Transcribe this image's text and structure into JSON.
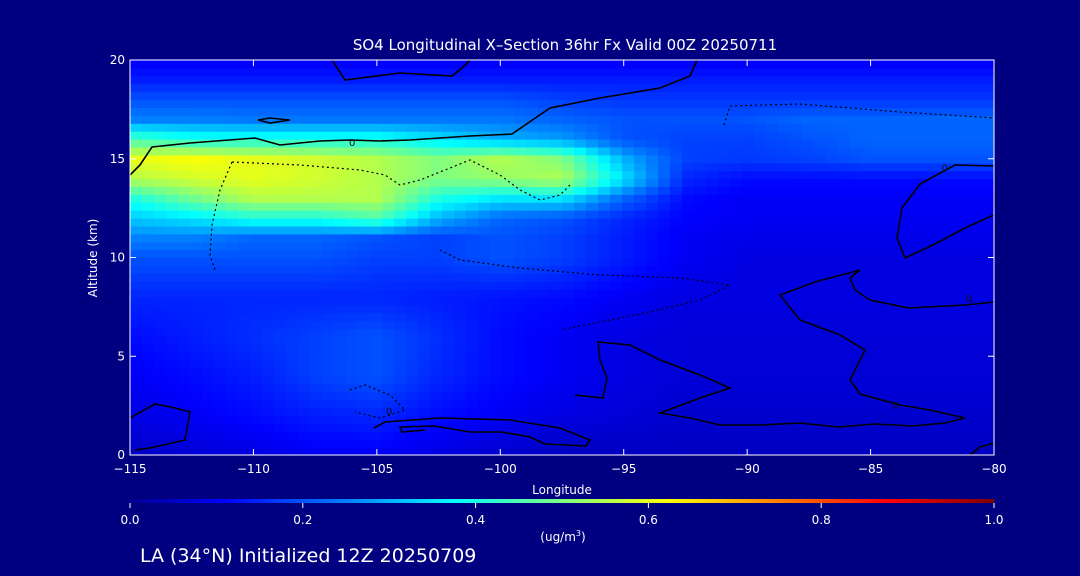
{
  "chart_data": {
    "type": "heatmap",
    "title": "SO4 Longitudinal X–Section 36hr  Fx Valid 00Z 20250711",
    "xlabel": "Longitude",
    "ylabel": "Altitude (km)",
    "xlim": [
      -115,
      -80
    ],
    "ylim": [
      0,
      20
    ],
    "x_ticks": [
      -115,
      -110,
      -105,
      -100,
      -95,
      -90,
      -85,
      -80
    ],
    "x_tick_labels": [
      "−115",
      "−110",
      "−105",
      "−100",
      "−95",
      "−90",
      "−85",
      "−80"
    ],
    "y_ticks": [
      0,
      5,
      10,
      15,
      20
    ],
    "y_tick_labels": [
      "0",
      "5",
      "10",
      "15",
      "20"
    ],
    "x": [
      -115,
      -112.5,
      -110,
      -107.5,
      -105,
      -102.5,
      -100,
      -97.5,
      -95,
      -92.5,
      -90,
      -87.5,
      -85,
      -82.5,
      -80
    ],
    "y": [
      0,
      2,
      4,
      6,
      8,
      10,
      11,
      12,
      13,
      14,
      15,
      16,
      17,
      18,
      19,
      20
    ],
    "z": [
      [
        0.05,
        0.07,
        0.08,
        0.1,
        0.1,
        0.08,
        0.06,
        0.05,
        0.05,
        0.05,
        0.05,
        0.05,
        0.05,
        0.05,
        0.05
      ],
      [
        0.08,
        0.1,
        0.12,
        0.14,
        0.15,
        0.12,
        0.1,
        0.08,
        0.07,
        0.06,
        0.06,
        0.06,
        0.06,
        0.06,
        0.06
      ],
      [
        0.1,
        0.12,
        0.14,
        0.18,
        0.2,
        0.15,
        0.12,
        0.1,
        0.08,
        0.07,
        0.07,
        0.07,
        0.07,
        0.07,
        0.07
      ],
      [
        0.12,
        0.14,
        0.16,
        0.18,
        0.2,
        0.16,
        0.12,
        0.1,
        0.08,
        0.07,
        0.07,
        0.07,
        0.07,
        0.07,
        0.07
      ],
      [
        0.15,
        0.15,
        0.15,
        0.15,
        0.15,
        0.14,
        0.13,
        0.12,
        0.1,
        0.08,
        0.08,
        0.08,
        0.08,
        0.08,
        0.08
      ],
      [
        0.2,
        0.2,
        0.2,
        0.2,
        0.18,
        0.18,
        0.2,
        0.18,
        0.14,
        0.1,
        0.08,
        0.08,
        0.08,
        0.08,
        0.08
      ],
      [
        0.25,
        0.25,
        0.22,
        0.22,
        0.2,
        0.18,
        0.2,
        0.18,
        0.14,
        0.1,
        0.09,
        0.09,
        0.09,
        0.09,
        0.09
      ],
      [
        0.32,
        0.35,
        0.4,
        0.4,
        0.45,
        0.3,
        0.22,
        0.2,
        0.15,
        0.11,
        0.1,
        0.1,
        0.1,
        0.1,
        0.1
      ],
      [
        0.4,
        0.48,
        0.55,
        0.55,
        0.55,
        0.4,
        0.35,
        0.35,
        0.22,
        0.12,
        0.1,
        0.1,
        0.1,
        0.1,
        0.1
      ],
      [
        0.55,
        0.58,
        0.6,
        0.58,
        0.55,
        0.5,
        0.52,
        0.55,
        0.35,
        0.15,
        0.12,
        0.12,
        0.12,
        0.12,
        0.12
      ],
      [
        0.6,
        0.62,
        0.6,
        0.58,
        0.55,
        0.5,
        0.55,
        0.5,
        0.3,
        0.18,
        0.17,
        0.18,
        0.2,
        0.2,
        0.2
      ],
      [
        0.45,
        0.4,
        0.4,
        0.4,
        0.4,
        0.35,
        0.3,
        0.28,
        0.2,
        0.18,
        0.18,
        0.2,
        0.22,
        0.22,
        0.22
      ],
      [
        0.25,
        0.25,
        0.24,
        0.24,
        0.24,
        0.24,
        0.24,
        0.22,
        0.2,
        0.2,
        0.2,
        0.22,
        0.22,
        0.22,
        0.22
      ],
      [
        0.2,
        0.2,
        0.2,
        0.2,
        0.2,
        0.2,
        0.2,
        0.18,
        0.17,
        0.17,
        0.17,
        0.17,
        0.17,
        0.17,
        0.17
      ],
      [
        0.14,
        0.14,
        0.14,
        0.14,
        0.14,
        0.14,
        0.14,
        0.14,
        0.14,
        0.14,
        0.14,
        0.14,
        0.14,
        0.14,
        0.14
      ],
      [
        0.1,
        0.1,
        0.1,
        0.1,
        0.1,
        0.1,
        0.1,
        0.1,
        0.1,
        0.1,
        0.1,
        0.1,
        0.1,
        0.1,
        0.1
      ]
    ],
    "contour_labels": [
      {
        "text": "0",
        "x": -106,
        "y": 15.8
      },
      {
        "text": "0",
        "x": -82,
        "y": 14.5
      },
      {
        "text": "0",
        "x": -81,
        "y": 7.9
      },
      {
        "text": "0",
        "x": -84,
        "y": 2.5
      },
      {
        "text": "0",
        "x": -104.5,
        "y": 2.2
      }
    ],
    "colorbar": {
      "min": 0.0,
      "max": 1.0,
      "ticks": [
        0.0,
        0.2,
        0.4,
        0.6,
        0.8,
        1.0
      ],
      "tick_labels": [
        "0.0",
        "0.2",
        "0.4",
        "0.6",
        "0.8",
        "1.0"
      ],
      "label": "(ug/m",
      "label_sup": "3",
      "label_close": ")"
    },
    "grid": false,
    "legend": "colorbar-bottom"
  },
  "footer": {
    "text": "LA (34°N) Initialized 12Z 20250709"
  },
  "colors": {
    "background": "#000080",
    "text": "#ffffff",
    "contour": "#000000"
  }
}
